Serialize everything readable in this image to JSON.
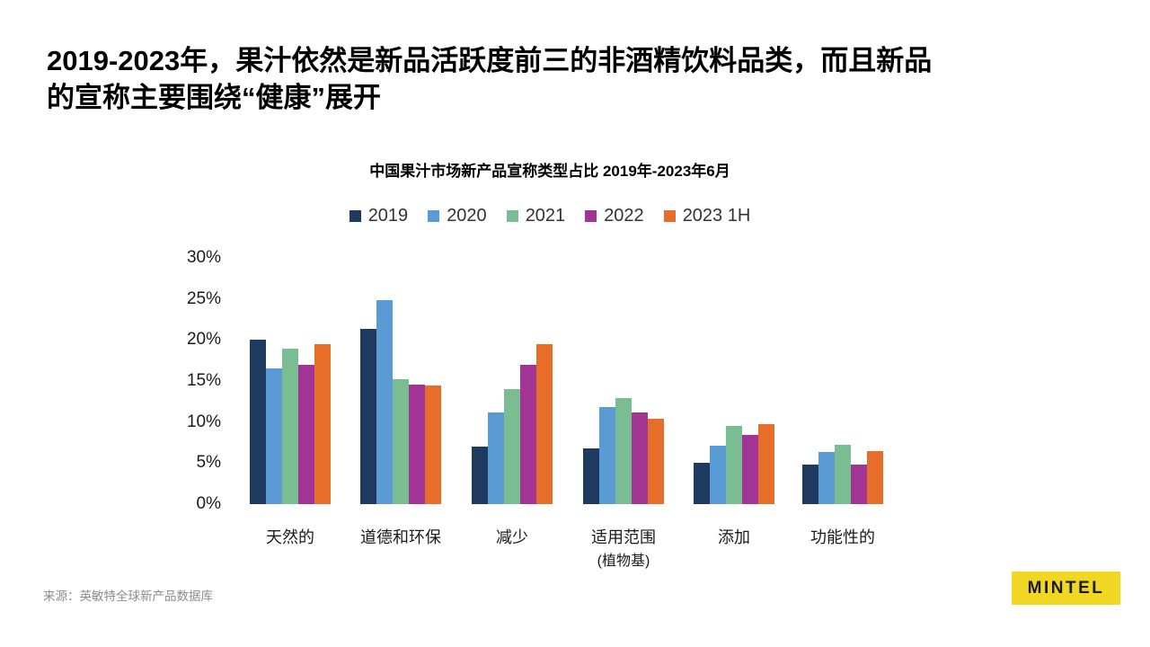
{
  "slide": {
    "title": "2019-2023年，果汁依然是新品活跃度前三的非酒精饮料品类，而且新品\n的宣称主要围绕“健康”展开"
  },
  "chart_data": {
    "type": "bar",
    "title": "中国果汁市场新产品宣称类型占比 2019年-2023年6月",
    "categories": [
      "天然的",
      "道德和环保",
      "减少",
      "适用范围",
      "添加",
      "功能性的"
    ],
    "category_sublabels": [
      "",
      "",
      "",
      "(植物基)",
      "",
      ""
    ],
    "series": [
      {
        "name": "2019",
        "color": "#1F3A5F",
        "values": [
          20.0,
          21.3,
          7.0,
          6.8,
          5.0,
          4.8
        ]
      },
      {
        "name": "2020",
        "color": "#5B9BD5",
        "values": [
          16.5,
          24.9,
          11.2,
          11.8,
          7.1,
          6.4
        ]
      },
      {
        "name": "2021",
        "color": "#7ABD92",
        "values": [
          18.9,
          15.2,
          14.0,
          12.9,
          9.5,
          7.2
        ]
      },
      {
        "name": "2022",
        "color": "#A23593",
        "values": [
          17.0,
          14.6,
          17.0,
          11.2,
          8.4,
          4.8
        ]
      },
      {
        "name": "2023 1H",
        "color": "#E76E28",
        "values": [
          19.5,
          14.5,
          19.5,
          10.4,
          9.7,
          6.5
        ]
      }
    ],
    "y_ticks": [
      0,
      5,
      10,
      15,
      20,
      25,
      30
    ],
    "y_tick_suffix": "%",
    "ylim": [
      0,
      30
    ],
    "grid": false,
    "legend_position": "top",
    "xlabel": "",
    "ylabel": ""
  },
  "source": {
    "text": "来源：英敏特全球新产品数据库"
  },
  "logo": {
    "text": "MINTEL",
    "bg_color": "#F0D722",
    "text_color": "#1a1a1a"
  }
}
